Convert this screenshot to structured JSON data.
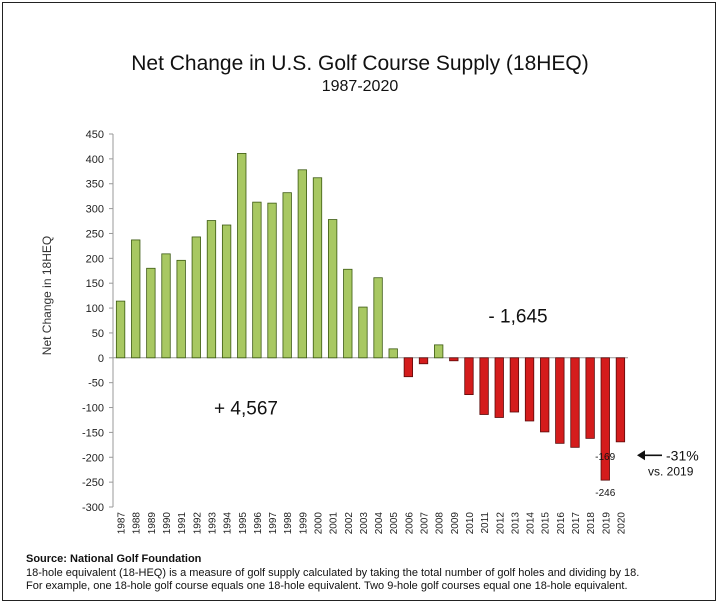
{
  "chart_data": {
    "type": "bar",
    "title": "Net Change in U.S. Golf Course Supply (18HEQ)",
    "subtitle": "1987-2020",
    "ylabel": "Net Change in 18HEQ",
    "xlabel": "",
    "ylim": [
      -300,
      450
    ],
    "yticks": [
      450,
      400,
      350,
      300,
      250,
      200,
      150,
      100,
      50,
      0,
      -50,
      -100,
      -150,
      -200,
      -250,
      -300
    ],
    "categories": [
      "1987",
      "1988",
      "1989",
      "1990",
      "1991",
      "1992",
      "1993",
      "1994",
      "1995",
      "1996",
      "1997",
      "1998",
      "1999",
      "2000",
      "2001",
      "2002",
      "2003",
      "2004",
      "2005",
      "2006",
      "2007",
      "2008",
      "2009",
      "2010",
      "2011",
      "2012",
      "2013",
      "2014",
      "2015",
      "2016",
      "2017",
      "2018",
      "2019",
      "2020"
    ],
    "values": [
      114,
      237,
      180,
      209,
      196,
      243,
      276,
      267,
      411,
      313,
      311,
      332,
      378,
      362,
      278,
      178,
      102,
      161,
      18,
      -38,
      -12,
      26,
      -6,
      -74,
      -114,
      -120,
      -109,
      -127,
      -149,
      -172,
      -180,
      -162,
      -246,
      -169
    ],
    "colors": {
      "positive": "#a8c862",
      "negative": "#d41c1c",
      "positive_edge": "#3c5a12",
      "negative_edge": "#5a0a0a"
    },
    "grid": false,
    "data_labels": [
      {
        "category": "2019",
        "text": "-246"
      },
      {
        "category": "2020",
        "text": "-169"
      }
    ],
    "annotations": {
      "positive_total": "+ 4,567",
      "negative_total": "- 1,645",
      "callout_line1": "-31%",
      "callout_line2": "vs. 2019"
    }
  },
  "footer": {
    "source": "Source: National Golf Foundation",
    "line1": "18-hole equivalent (18-HEQ) is a measure of golf supply calculated by taking the total number of golf holes and dividing by 18.",
    "line2": "For example, one 18-hole golf course equals one 18-hole equivalent. Two 9-hole golf courses equal one 18-hole equivalent."
  }
}
